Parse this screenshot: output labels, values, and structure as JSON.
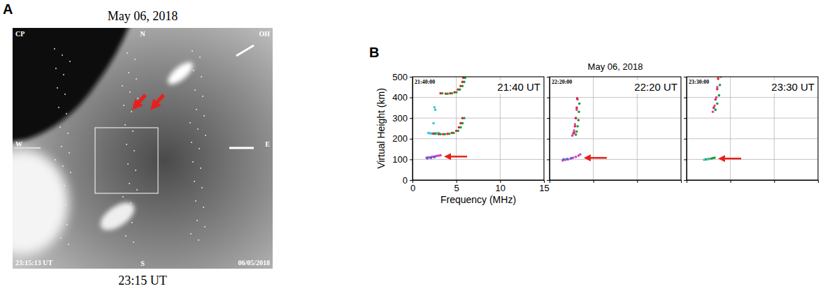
{
  "panel_a": {
    "letter": "A",
    "title": "May 06, 2018",
    "caption": "23:15 UT",
    "labels": {
      "top_left": "CP",
      "top": "N",
      "top_right": "OH",
      "left": "W",
      "right": "E",
      "bottom": "S",
      "time": "23:15:13 UT",
      "date": "06/05/2018"
    }
  },
  "panel_b": {
    "letter": "B",
    "title": "May 06, 2018"
  },
  "chart_data": [
    {
      "type": "scatter",
      "title": "21:40 UT",
      "subtitle": "21:40:00",
      "x_label": "Frequency (MHz)",
      "y_label": "Virtual Height (km)",
      "xlim": [
        0,
        15
      ],
      "ylim": [
        0,
        500
      ],
      "xticks": [
        0,
        5,
        10,
        15
      ],
      "yticks": [
        0,
        100,
        200,
        300,
        400,
        500
      ],
      "grid": true,
      "series": [
        {
          "color": "#d63fc4",
          "marker": "dot",
          "x": [
            1.6,
            1.8,
            2.0,
            2.2,
            2.4,
            2.6,
            2.8,
            3.0,
            3.2
          ],
          "values": [
            108,
            110,
            110,
            112,
            113,
            115,
            117,
            118,
            120
          ]
        },
        {
          "color": "#3f6fd6",
          "marker": "dot",
          "x": [
            1.7,
            2.1,
            2.5
          ],
          "values": [
            105,
            107,
            111
          ]
        },
        {
          "color": "#3fc4d6",
          "marker": "dot",
          "x": [
            1.8,
            2.0,
            2.2,
            2.4,
            2.6,
            2.8,
            3.0,
            2.4,
            2.6,
            2.5
          ],
          "values": [
            228,
            226,
            225,
            224,
            224,
            226,
            228,
            275,
            340,
            352
          ]
        },
        {
          "color": "#e02424",
          "marker": "dot",
          "x": [
            2.4,
            3.0,
            3.5,
            4.0,
            4.5,
            5.0,
            5.3,
            5.5,
            5.7,
            3.2,
            3.8,
            4.3,
            4.8,
            5.2,
            5.5,
            5.7,
            5.8
          ],
          "values": [
            225,
            222,
            222,
            224,
            228,
            238,
            255,
            275,
            300,
            420,
            418,
            420,
            425,
            438,
            455,
            475,
            495
          ]
        },
        {
          "color": "#1f9a3f",
          "marker": "dot",
          "x": [
            2.6,
            3.2,
            3.7,
            4.2,
            4.7,
            5.2,
            5.5,
            5.7,
            5.9,
            3.4,
            4.0,
            4.5,
            5.0,
            5.4,
            5.7,
            5.9,
            6.0
          ],
          "values": [
            225,
            222,
            222,
            224,
            228,
            238,
            255,
            275,
            300,
            420,
            418,
            420,
            425,
            438,
            455,
            475,
            495
          ]
        }
      ]
    },
    {
      "type": "scatter",
      "title": "22:20 UT",
      "subtitle": "22:20:00",
      "xlim": [
        0,
        15
      ],
      "ylim": [
        0,
        500
      ],
      "xticks": [
        0,
        5,
        10,
        15
      ],
      "yticks": [
        0,
        100,
        200,
        300,
        400,
        500
      ],
      "grid": true,
      "tick_labels": false,
      "series": [
        {
          "color": "#d63fc4",
          "marker": "dot",
          "x": [
            1.5,
            1.8,
            2.1,
            2.4,
            2.7,
            3.0,
            3.3,
            3.5,
            2.6,
            2.7,
            2.8,
            2.9,
            3.0,
            3.1,
            3.2
          ],
          "values": [
            95,
            98,
            100,
            104,
            108,
            112,
            118,
            124,
            215,
            225,
            240,
            270,
            300,
            340,
            390
          ]
        },
        {
          "color": "#3f6fd6",
          "marker": "dot",
          "x": [
            1.6,
            2.0,
            2.5
          ],
          "values": [
            100,
            102,
            106
          ]
        },
        {
          "color": "#1f9a3f",
          "marker": "dot",
          "x": [
            3.0,
            3.1,
            3.2,
            3.3,
            3.35,
            3.4
          ],
          "values": [
            220,
            235,
            260,
            290,
            330,
            370
          ]
        },
        {
          "color": "#e02424",
          "marker": "dot",
          "x": [
            2.8,
            2.9,
            3.0,
            3.1,
            3.15
          ],
          "values": [
            230,
            260,
            300,
            350,
            395
          ]
        }
      ]
    },
    {
      "type": "scatter",
      "title": "23:30 UT",
      "subtitle": "23:30:00",
      "xlim": [
        0,
        15
      ],
      "ylim": [
        0,
        500
      ],
      "xticks": [
        0,
        5,
        10,
        15
      ],
      "yticks": [
        0,
        100,
        200,
        300,
        400,
        500
      ],
      "grid": true,
      "tick_labels": false,
      "series": [
        {
          "color": "#1f9a3f",
          "marker": "dot",
          "x": [
            2.2,
            2.5,
            2.8,
            3.0,
            3.2,
            3.3,
            3.5,
            3.7,
            3.8,
            3.9
          ],
          "values": [
            100,
            102,
            104,
            106,
            108,
            340,
            370,
            410,
            460,
            500
          ]
        },
        {
          "color": "#3fc4d6",
          "marker": "dot",
          "x": [
            2.0,
            2.4
          ],
          "values": [
            98,
            100
          ]
        },
        {
          "color": "#d63fc4",
          "marker": "dot",
          "x": [
            3.0,
            3.2,
            3.4,
            3.5,
            3.6
          ],
          "values": [
            330,
            360,
            400,
            450,
            500
          ]
        },
        {
          "color": "#e02424",
          "marker": "dot",
          "x": [
            3.1,
            3.3,
            3.5,
            3.6
          ],
          "values": [
            350,
            390,
            440,
            490
          ]
        }
      ]
    }
  ]
}
